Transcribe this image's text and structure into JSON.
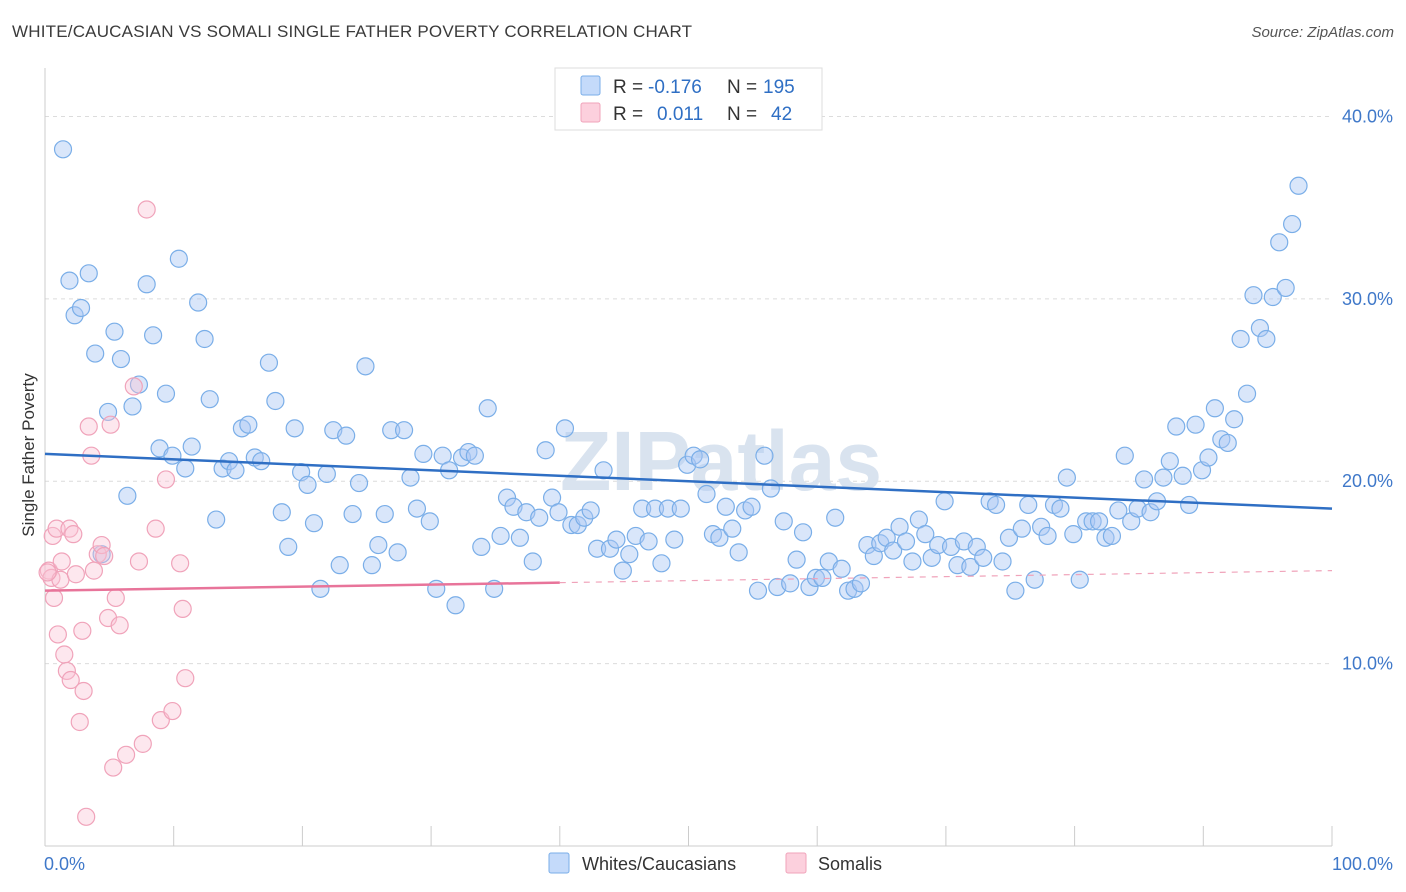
{
  "title": "WHITE/CAUCASIAN VS SOMALI SINGLE FATHER POVERTY CORRELATION CHART",
  "source": "Source: ZipAtlas.com",
  "watermark": "ZIPatlas",
  "colors": {
    "blue": "#7aaee8",
    "blue_line": "#2f6fc4",
    "pink": "#f0a3ba",
    "pink_line": "#e8749a",
    "tick": "#3f78c9"
  },
  "legend": {
    "rows": [
      {
        "r_label": "R =",
        "r_value": "-0.176",
        "n_label": "N =",
        "n_value": "195"
      },
      {
        "r_label": "R =",
        "r_value": "0.011",
        "n_label": "N =",
        "n_value": "42"
      }
    ]
  },
  "bottom_legend": [
    "Whites/Caucasians",
    "Somalis"
  ],
  "chart_data": {
    "type": "scatter",
    "title": "WHITE/CAUCASIAN VS SOMALI SINGLE FATHER POVERTY CORRELATION CHART",
    "xlabel": "",
    "ylabel": "Single Father Poverty",
    "xlim": [
      0,
      100
    ],
    "ylim": [
      0,
      42
    ],
    "x_tick_labels": [
      "0.0%",
      "100.0%"
    ],
    "y_ticks": [
      10,
      20,
      30,
      40
    ],
    "y_tick_labels": [
      "10.0%",
      "20.0%",
      "30.0%",
      "40.0%"
    ],
    "grid": true,
    "legend_position": "top-center",
    "series": [
      {
        "name": "Whites/Caucasians",
        "color": "#7aaee8",
        "trend": {
          "x": [
            0,
            100
          ],
          "y": [
            21.5,
            18.5
          ]
        },
        "points": [
          [
            1.4,
            38.2
          ],
          [
            1.9,
            31.0
          ],
          [
            2.3,
            29.1
          ],
          [
            2.8,
            29.5
          ],
          [
            3.4,
            31.4
          ],
          [
            3.9,
            27.0
          ],
          [
            4.4,
            16.0
          ],
          [
            4.9,
            23.8
          ],
          [
            5.4,
            28.2
          ],
          [
            5.9,
            26.7
          ],
          [
            6.4,
            19.2
          ],
          [
            6.8,
            24.1
          ],
          [
            7.3,
            25.3
          ],
          [
            7.9,
            30.8
          ],
          [
            8.4,
            28.0
          ],
          [
            8.9,
            21.8
          ],
          [
            9.4,
            24.8
          ],
          [
            9.9,
            21.4
          ],
          [
            10.4,
            32.2
          ],
          [
            10.9,
            20.7
          ],
          [
            11.4,
            21.9
          ],
          [
            11.9,
            29.8
          ],
          [
            12.4,
            27.8
          ],
          [
            12.8,
            24.5
          ],
          [
            13.3,
            17.9
          ],
          [
            13.8,
            20.7
          ],
          [
            14.3,
            21.1
          ],
          [
            14.8,
            20.6
          ],
          [
            15.3,
            22.9
          ],
          [
            15.8,
            23.1
          ],
          [
            16.3,
            21.3
          ],
          [
            16.8,
            21.1
          ],
          [
            17.4,
            26.5
          ],
          [
            17.9,
            24.4
          ],
          [
            18.4,
            18.3
          ],
          [
            18.9,
            16.4
          ],
          [
            19.4,
            22.9
          ],
          [
            19.9,
            20.5
          ],
          [
            20.4,
            19.8
          ],
          [
            20.9,
            17.7
          ],
          [
            21.4,
            14.1
          ],
          [
            21.9,
            20.4
          ],
          [
            22.4,
            22.8
          ],
          [
            22.9,
            15.4
          ],
          [
            23.4,
            22.5
          ],
          [
            23.9,
            18.2
          ],
          [
            24.4,
            19.9
          ],
          [
            24.9,
            26.3
          ],
          [
            25.4,
            15.4
          ],
          [
            25.9,
            16.5
          ],
          [
            26.4,
            18.2
          ],
          [
            26.9,
            22.8
          ],
          [
            27.4,
            16.1
          ],
          [
            27.9,
            22.8
          ],
          [
            28.4,
            20.2
          ],
          [
            28.9,
            18.5
          ],
          [
            29.4,
            21.5
          ],
          [
            29.9,
            17.8
          ],
          [
            30.4,
            14.1
          ],
          [
            30.9,
            21.4
          ],
          [
            31.4,
            20.6
          ],
          [
            31.9,
            13.2
          ],
          [
            32.4,
            21.3
          ],
          [
            32.9,
            21.6
          ],
          [
            33.4,
            21.4
          ],
          [
            33.9,
            16.4
          ],
          [
            34.4,
            24.0
          ],
          [
            34.9,
            14.1
          ],
          [
            35.4,
            17.0
          ],
          [
            35.9,
            19.1
          ],
          [
            36.4,
            18.6
          ],
          [
            36.9,
            16.9
          ],
          [
            37.4,
            18.3
          ],
          [
            37.9,
            15.6
          ],
          [
            38.4,
            18.0
          ],
          [
            38.9,
            21.7
          ],
          [
            39.4,
            19.1
          ],
          [
            39.9,
            18.3
          ],
          [
            40.4,
            22.9
          ],
          [
            40.9,
            17.6
          ],
          [
            41.4,
            17.6
          ],
          [
            41.9,
            18.0
          ],
          [
            42.4,
            18.4
          ],
          [
            42.9,
            16.3
          ],
          [
            43.4,
            20.6
          ],
          [
            43.9,
            16.3
          ],
          [
            44.4,
            16.8
          ],
          [
            44.9,
            15.1
          ],
          [
            45.4,
            16.0
          ],
          [
            45.9,
            17.0
          ],
          [
            46.4,
            18.5
          ],
          [
            46.9,
            16.7
          ],
          [
            47.4,
            18.5
          ],
          [
            47.9,
            15.5
          ],
          [
            48.4,
            18.5
          ],
          [
            48.9,
            16.8
          ],
          [
            49.4,
            18.5
          ],
          [
            49.9,
            20.9
          ],
          [
            50.4,
            21.4
          ],
          [
            50.9,
            21.2
          ],
          [
            51.4,
            19.3
          ],
          [
            51.9,
            17.1
          ],
          [
            52.4,
            16.9
          ],
          [
            52.9,
            18.6
          ],
          [
            53.4,
            17.4
          ],
          [
            53.9,
            16.1
          ],
          [
            54.4,
            18.4
          ],
          [
            54.9,
            18.6
          ],
          [
            55.4,
            14.0
          ],
          [
            55.9,
            21.4
          ],
          [
            56.4,
            19.6
          ],
          [
            56.9,
            14.2
          ],
          [
            57.4,
            17.8
          ],
          [
            57.9,
            14.4
          ],
          [
            58.4,
            15.7
          ],
          [
            58.9,
            17.2
          ],
          [
            59.4,
            14.2
          ],
          [
            59.9,
            14.7
          ],
          [
            60.4,
            14.7
          ],
          [
            60.9,
            15.6
          ],
          [
            61.4,
            18.0
          ],
          [
            61.9,
            15.2
          ],
          [
            62.4,
            14.0
          ],
          [
            62.9,
            14.1
          ],
          [
            63.4,
            14.4
          ],
          [
            63.9,
            16.5
          ],
          [
            64.4,
            15.9
          ],
          [
            64.9,
            16.6
          ],
          [
            65.4,
            16.9
          ],
          [
            65.9,
            16.2
          ],
          [
            66.4,
            17.5
          ],
          [
            66.9,
            16.7
          ],
          [
            67.4,
            15.6
          ],
          [
            67.9,
            17.9
          ],
          [
            68.4,
            17.1
          ],
          [
            68.9,
            15.8
          ],
          [
            69.4,
            16.5
          ],
          [
            69.9,
            18.9
          ],
          [
            70.4,
            16.4
          ],
          [
            70.9,
            15.4
          ],
          [
            71.4,
            16.7
          ],
          [
            71.9,
            15.3
          ],
          [
            72.4,
            16.4
          ],
          [
            72.9,
            15.8
          ],
          [
            73.4,
            18.9
          ],
          [
            73.9,
            18.7
          ],
          [
            74.4,
            15.6
          ],
          [
            74.9,
            16.9
          ],
          [
            75.4,
            14.0
          ],
          [
            75.9,
            17.4
          ],
          [
            76.4,
            18.7
          ],
          [
            76.9,
            14.6
          ],
          [
            77.4,
            17.5
          ],
          [
            77.9,
            17.0
          ],
          [
            78.4,
            18.7
          ],
          [
            78.9,
            18.5
          ],
          [
            79.4,
            20.2
          ],
          [
            79.9,
            17.1
          ],
          [
            80.4,
            14.6
          ],
          [
            80.9,
            17.8
          ],
          [
            81.4,
            17.8
          ],
          [
            81.9,
            17.8
          ],
          [
            82.4,
            16.9
          ],
          [
            82.9,
            17.0
          ],
          [
            83.4,
            18.4
          ],
          [
            83.9,
            21.4
          ],
          [
            84.4,
            17.8
          ],
          [
            84.9,
            18.5
          ],
          [
            85.4,
            20.1
          ],
          [
            85.9,
            18.3
          ],
          [
            86.4,
            18.9
          ],
          [
            86.9,
            20.2
          ],
          [
            87.4,
            21.1
          ],
          [
            87.9,
            23.0
          ],
          [
            88.4,
            20.3
          ],
          [
            88.9,
            18.7
          ],
          [
            89.4,
            23.1
          ],
          [
            89.9,
            20.6
          ],
          [
            90.4,
            21.3
          ],
          [
            90.9,
            24.0
          ],
          [
            91.4,
            22.3
          ],
          [
            91.9,
            22.1
          ],
          [
            92.4,
            23.4
          ],
          [
            92.9,
            27.8
          ],
          [
            93.4,
            24.8
          ],
          [
            93.9,
            30.2
          ],
          [
            94.4,
            28.4
          ],
          [
            94.9,
            27.8
          ],
          [
            95.4,
            30.1
          ],
          [
            95.9,
            33.1
          ],
          [
            96.4,
            30.6
          ],
          [
            96.9,
            34.1
          ],
          [
            97.4,
            36.2
          ]
        ]
      },
      {
        "name": "Somalis",
        "color": "#f0a3ba",
        "trend": {
          "x": [
            0,
            40
          ],
          "y": [
            14.0,
            14.44
          ]
        },
        "trend_dashed": {
          "x": [
            40,
            100
          ],
          "y": [
            14.44,
            15.1
          ]
        },
        "points": [
          [
            0.3,
            15.1
          ],
          [
            0.5,
            14.7
          ],
          [
            0.6,
            17.0
          ],
          [
            0.7,
            13.6
          ],
          [
            0.9,
            17.4
          ],
          [
            1.0,
            11.6
          ],
          [
            1.2,
            14.6
          ],
          [
            1.3,
            15.6
          ],
          [
            1.5,
            10.5
          ],
          [
            1.7,
            9.6
          ],
          [
            1.9,
            17.4
          ],
          [
            2.0,
            9.1
          ],
          [
            2.2,
            17.1
          ],
          [
            2.4,
            14.9
          ],
          [
            2.7,
            6.8
          ],
          [
            2.9,
            11.8
          ],
          [
            3.0,
            8.5
          ],
          [
            3.2,
            1.6
          ],
          [
            3.4,
            23.0
          ],
          [
            3.6,
            21.4
          ],
          [
            3.8,
            15.1
          ],
          [
            4.1,
            16.0
          ],
          [
            4.4,
            16.5
          ],
          [
            4.6,
            15.9
          ],
          [
            4.9,
            12.5
          ],
          [
            5.1,
            23.1
          ],
          [
            5.3,
            4.3
          ],
          [
            5.5,
            13.6
          ],
          [
            5.8,
            12.1
          ],
          [
            6.3,
            5.0
          ],
          [
            6.9,
            25.2
          ],
          [
            7.3,
            15.6
          ],
          [
            7.6,
            5.6
          ],
          [
            7.9,
            34.9
          ],
          [
            8.6,
            17.4
          ],
          [
            9.0,
            6.9
          ],
          [
            9.4,
            20.1
          ],
          [
            9.9,
            7.4
          ],
          [
            10.5,
            15.5
          ],
          [
            10.7,
            13.0
          ],
          [
            10.9,
            9.2
          ],
          [
            0.2,
            15.0
          ]
        ]
      }
    ]
  }
}
